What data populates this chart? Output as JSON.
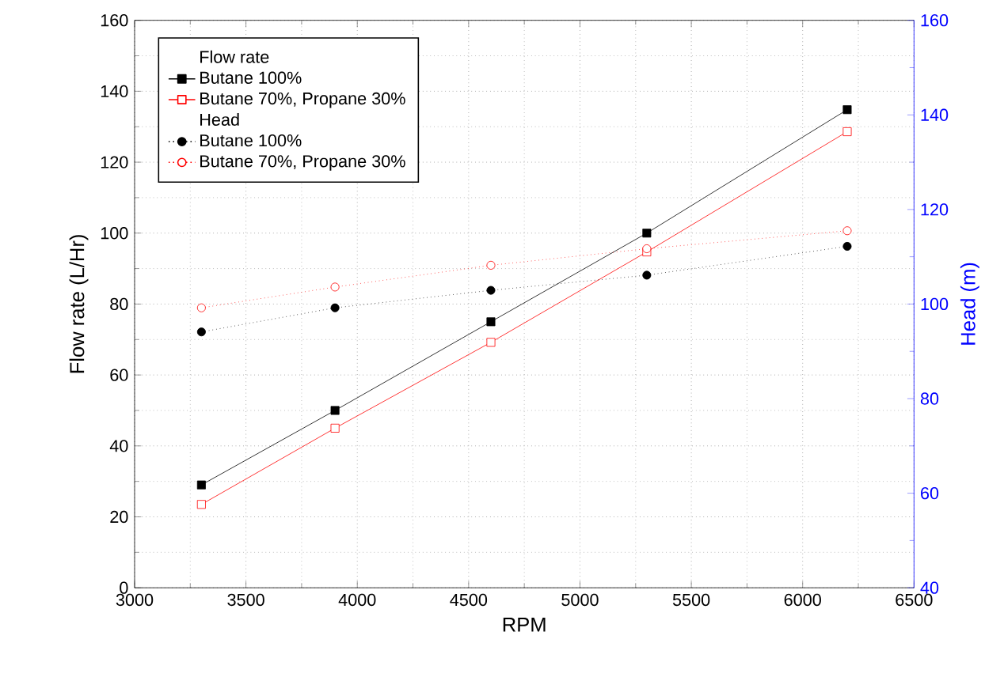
{
  "chart_data": {
    "type": "line",
    "xlabel": "RPM",
    "ylabel": "Flow rate (L/Hr)",
    "y2label": "Head (m)",
    "x": [
      3300,
      3900,
      4600,
      5300,
      6200
    ],
    "series": [
      {
        "name": "Butane 100%",
        "color": "#000000",
        "marker": "square",
        "line_style": "solid",
        "values": [
          29,
          50,
          75,
          100,
          134.8
        ]
      },
      {
        "name": "Butane 70%, Propane 30%",
        "color": "#ff0000",
        "marker": "square",
        "line_style": "solid",
        "values": [
          23.5,
          45,
          69.2,
          94.7,
          128.6
        ]
      },
      {
        "name": "Butane 100%",
        "color": "#000000",
        "marker": "circle",
        "line_style": "dotted",
        "axis": "y2",
        "values": [
          94.1,
          99.2,
          102.9,
          106.1,
          112.2
        ]
      },
      {
        "name": "Butane 70%, Propane 30%",
        "color": "#ff0000",
        "marker": "circle",
        "line_style": "dotted",
        "axis": "y2",
        "values": [
          99.2,
          103.6,
          108.2,
          111.7,
          115.5
        ]
      }
    ],
    "annotations": [
      "Flow rate",
      "Head"
    ],
    "xlim": [
      3000,
      6500
    ],
    "xticks": [
      3000,
      3500,
      4000,
      4500,
      5000,
      5500,
      6000,
      6500
    ],
    "ylim": [
      0,
      160
    ],
    "yticks": [
      0,
      20,
      40,
      60,
      80,
      100,
      120,
      140,
      160
    ],
    "y2lim": [
      40,
      160
    ],
    "y2ticks": [
      40,
      60,
      80,
      100,
      120,
      140,
      160
    ],
    "grid": true,
    "legend": "top left"
  }
}
